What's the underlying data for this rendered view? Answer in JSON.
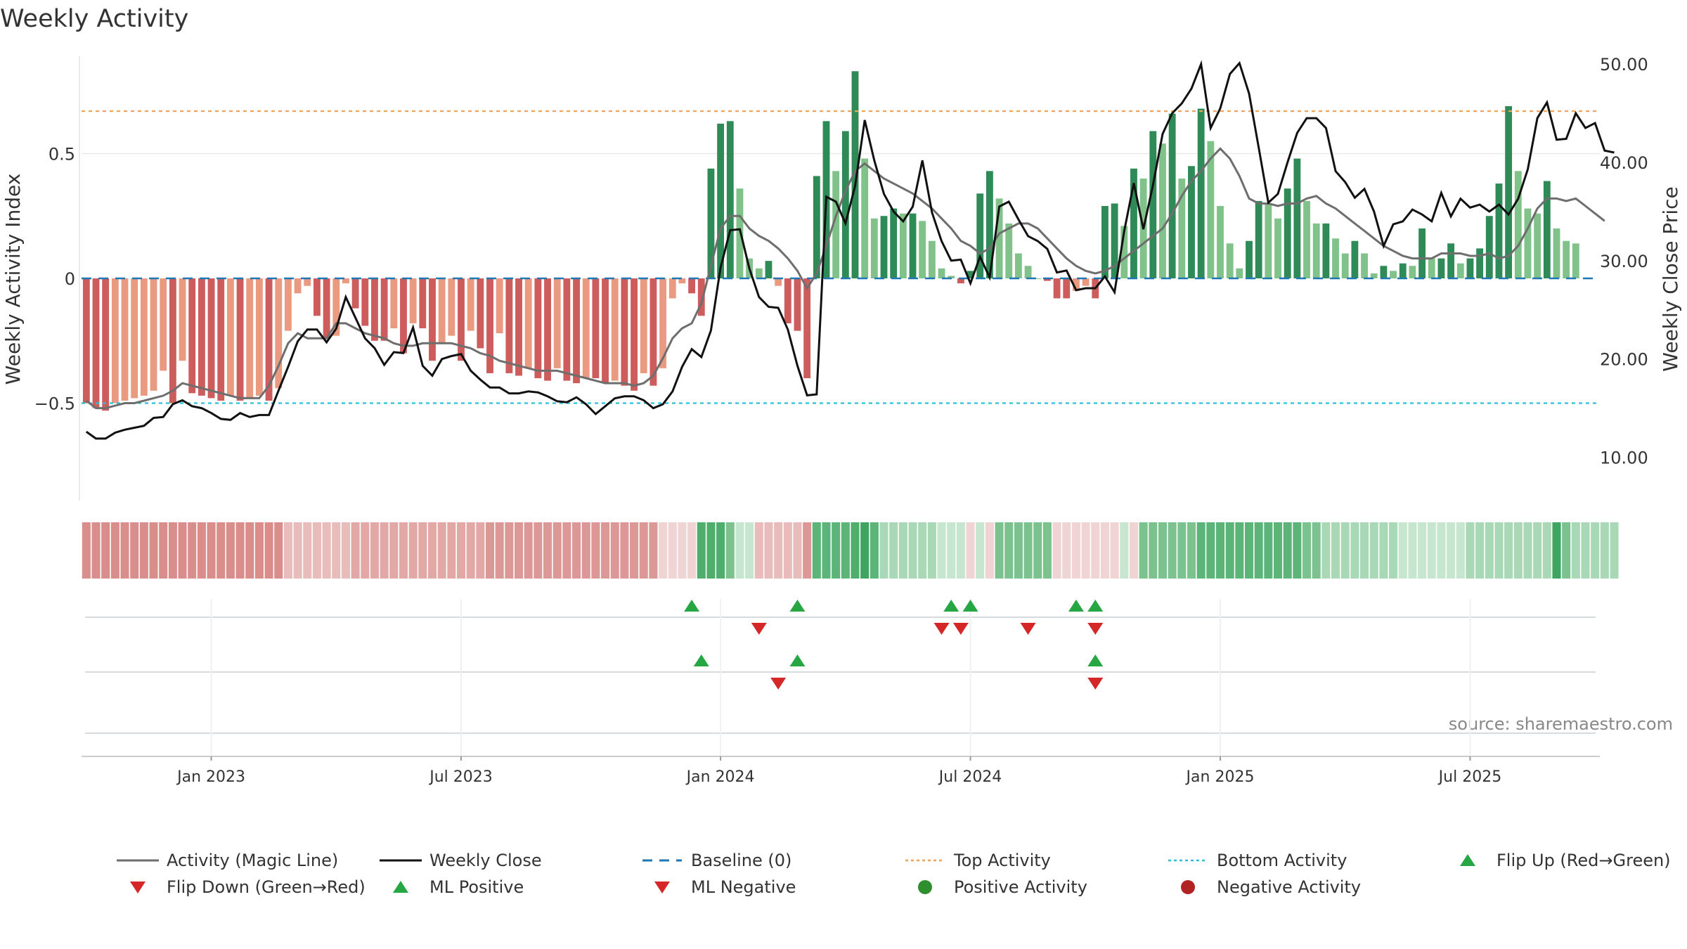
{
  "chart_data": {
    "type": "bar",
    "title": "Weekly Activity",
    "ylabel": "Weekly Activity Index",
    "y2label": "Weekly Close Price",
    "ylim": [
      -0.89,
      0.89
    ],
    "y2lim": [
      5.6,
      50.8
    ],
    "y_ticks": [
      {
        "v": -0.5,
        "label": "−0.5"
      },
      {
        "v": 0,
        "label": "0"
      },
      {
        "v": 0.5,
        "label": "0.5"
      }
    ],
    "y2_ticks": [
      {
        "v": 10,
        "label": "10.00"
      },
      {
        "v": 20,
        "label": "20.00"
      },
      {
        "v": 30,
        "label": "30.00"
      },
      {
        "v": 40,
        "label": "40.00"
      },
      {
        "v": 50,
        "label": "50.00"
      }
    ],
    "x_ticks": [
      {
        "week": 13,
        "label": "Jan 2023"
      },
      {
        "week": 39,
        "label": "Jul 2023"
      },
      {
        "week": 66,
        "label": "Jan 2024"
      },
      {
        "week": 92,
        "label": "Jul 2024"
      },
      {
        "week": 118,
        "label": "Jan 2025"
      },
      {
        "week": 144,
        "label": "Jul 2025"
      }
    ],
    "weeks": 158,
    "top_activity": 0.67,
    "bottom_activity": -0.5,
    "baseline": 0,
    "source": "source: sharemaestro.com",
    "activity": [
      -0.5,
      -0.52,
      -0.53,
      -0.5,
      -0.49,
      -0.48,
      -0.47,
      -0.45,
      -0.37,
      -0.5,
      -0.33,
      -0.46,
      -0.47,
      -0.48,
      -0.49,
      -0.47,
      -0.49,
      -0.48,
      -0.47,
      -0.49,
      -0.44,
      -0.21,
      -0.06,
      -0.03,
      -0.15,
      -0.24,
      -0.23,
      -0.02,
      -0.12,
      -0.19,
      -0.25,
      -0.25,
      -0.2,
      -0.3,
      -0.18,
      -0.2,
      -0.33,
      -0.26,
      -0.23,
      -0.33,
      -0.21,
      -0.28,
      -0.38,
      -0.22,
      -0.38,
      -0.39,
      -0.36,
      -0.4,
      -0.41,
      -0.36,
      -0.41,
      -0.42,
      -0.4,
      -0.4,
      -0.42,
      -0.41,
      -0.43,
      -0.45,
      -0.38,
      -0.43,
      -0.36,
      -0.08,
      -0.02,
      -0.06,
      -0.15,
      0.44,
      0.62,
      0.63,
      0.36,
      0.08,
      0.04,
      0.07,
      -0.03,
      -0.18,
      -0.21,
      -0.4,
      0.41,
      0.63,
      0.43,
      0.59,
      0.83,
      0.48,
      0.24,
      0.25,
      0.28,
      0.26,
      0.26,
      0.23,
      0.15,
      0.04,
      0.01,
      -0.02,
      0.03,
      0.34,
      0.43,
      0.32,
      0.22,
      0.1,
      0.05,
      0.0,
      -0.01,
      -0.08,
      -0.08,
      -0.05,
      -0.03,
      -0.08,
      0.29,
      0.3,
      0.21,
      0.44,
      0.4,
      0.59,
      0.54,
      0.66,
      0.4,
      0.45,
      0.68,
      0.55,
      0.29,
      0.14,
      0.04,
      0.15,
      0.31,
      0.3,
      0.24,
      0.36,
      0.48,
      0.31,
      0.22,
      0.22,
      0.16,
      0.1,
      0.15,
      0.1,
      0.02,
      0.05,
      0.03,
      0.06,
      0.05,
      0.2,
      0.08,
      0.08,
      0.14,
      0.06,
      0.08,
      0.12,
      0.25,
      0.38,
      0.69,
      0.43,
      0.28,
      0.26,
      0.39,
      0.2,
      0.15,
      0.14
    ],
    "magic_line": [
      -0.49,
      -0.52,
      -0.52,
      -0.51,
      -0.5,
      -0.5,
      -0.49,
      -0.48,
      -0.47,
      -0.45,
      -0.42,
      -0.43,
      -0.44,
      -0.45,
      -0.46,
      -0.47,
      -0.48,
      -0.48,
      -0.48,
      -0.43,
      -0.35,
      -0.26,
      -0.22,
      -0.24,
      -0.24,
      -0.24,
      -0.18,
      -0.18,
      -0.2,
      -0.22,
      -0.23,
      -0.24,
      -0.26,
      -0.27,
      -0.27,
      -0.26,
      -0.26,
      -0.26,
      -0.26,
      -0.27,
      -0.28,
      -0.3,
      -0.31,
      -0.33,
      -0.34,
      -0.35,
      -0.36,
      -0.37,
      -0.37,
      -0.37,
      -0.38,
      -0.39,
      -0.4,
      -0.41,
      -0.42,
      -0.42,
      -0.42,
      -0.43,
      -0.42,
      -0.39,
      -0.32,
      -0.24,
      -0.2,
      -0.18,
      -0.1,
      0.05,
      0.2,
      0.25,
      0.25,
      0.2,
      0.17,
      0.15,
      0.12,
      0.08,
      0.03,
      -0.04,
      0.02,
      0.13,
      0.25,
      0.35,
      0.43,
      0.46,
      0.43,
      0.4,
      0.38,
      0.36,
      0.34,
      0.31,
      0.28,
      0.24,
      0.2,
      0.15,
      0.13,
      0.1,
      0.12,
      0.18,
      0.2,
      0.22,
      0.22,
      0.2,
      0.16,
      0.12,
      0.08,
      0.05,
      0.03,
      0.02,
      0.03,
      0.05,
      0.08,
      0.11,
      0.14,
      0.17,
      0.2,
      0.26,
      0.33,
      0.39,
      0.43,
      0.48,
      0.52,
      0.48,
      0.41,
      0.32,
      0.3,
      0.3,
      0.29,
      0.3,
      0.3,
      0.32,
      0.33,
      0.3,
      0.28,
      0.25,
      0.22,
      0.19,
      0.16,
      0.13,
      0.11,
      0.09,
      0.08,
      0.08,
      0.08,
      0.1,
      0.1,
      0.1,
      0.09,
      0.09,
      0.1,
      0.08,
      0.09,
      0.13,
      0.2,
      0.28,
      0.32,
      0.32,
      0.31,
      0.32,
      0.29,
      0.26,
      0.23
    ],
    "weekly_close": [
      12.6,
      11.9,
      11.9,
      12.5,
      12.8,
      13.0,
      13.2,
      14.0,
      14.1,
      15.4,
      15.8,
      15.2,
      15.0,
      14.5,
      13.9,
      13.8,
      14.5,
      14.1,
      14.3,
      14.3,
      16.8,
      19.2,
      21.8,
      23.0,
      23.0,
      21.7,
      23.1,
      26.3,
      24.2,
      22.1,
      21.1,
      19.4,
      20.7,
      20.6,
      23.2,
      19.3,
      18.3,
      20.0,
      20.3,
      20.5,
      18.8,
      17.9,
      17.1,
      17.1,
      16.5,
      16.5,
      16.7,
      16.6,
      16.2,
      15.7,
      15.6,
      16.1,
      15.4,
      14.4,
      15.2,
      16.0,
      16.2,
      16.2,
      15.8,
      15.0,
      15.4,
      16.7,
      19.2,
      21.0,
      20.2,
      22.9,
      29.3,
      33.1,
      33.2,
      29.2,
      26.3,
      25.3,
      25.2,
      23.0,
      19.3,
      16.3,
      16.4,
      36.5,
      36.0,
      33.8,
      37.6,
      44.3,
      40.2,
      36.8,
      35.0,
      34.0,
      35.5,
      40.2,
      34.9,
      32.0,
      30.0,
      30.1,
      27.7,
      30.4,
      28.3,
      35.5,
      36.0,
      34.2,
      32.5,
      32.0,
      31.2,
      28.8,
      29.0,
      27.0,
      27.2,
      27.2,
      28.4,
      26.8,
      33.0,
      37.9,
      33.2,
      37.7,
      42.9,
      45.0,
      46.0,
      47.5,
      50.0,
      43.5,
      45.5,
      49.0,
      50.1,
      47.0,
      41.5,
      35.9,
      36.8,
      40.0,
      43.0,
      44.5,
      44.5,
      43.5,
      39.1,
      38.0,
      36.4,
      37.3,
      35.0,
      31.5,
      33.7,
      34.0,
      35.2,
      34.7,
      34.0,
      36.9,
      34.5,
      36.3,
      35.4,
      35.7,
      35.0,
      35.7,
      34.7,
      36.3,
      39.3,
      44.5,
      46.1,
      42.3,
      42.4,
      45.0,
      43.5,
      44.0,
      41.2,
      41.0
    ],
    "strip_colors": [
      "#d98e8c",
      "#d98e8c",
      "#d98e8c",
      "#d98e8c",
      "#d98e8c",
      "#d98e8c",
      "#d98e8c",
      "#d98e8c",
      "#d98e8c",
      "#d98e8c",
      "#d98e8c",
      "#d98e8c",
      "#d98e8c",
      "#d98e8c",
      "#d98e8c",
      "#d98e8c",
      "#d98e8c",
      "#d98e8c",
      "#d98e8c",
      "#d98e8c",
      "#d98e8c",
      "#e8bcba",
      "#e8bcba",
      "#e8bcba",
      "#e8bcba",
      "#e8bcba",
      "#e8bcba",
      "#e8bcba",
      "#e1a8a6",
      "#e1a8a6",
      "#e1a8a6",
      "#e1a8a6",
      "#e1a8a6",
      "#e1a8a6",
      "#e1a8a6",
      "#e1a8a6",
      "#e1a8a6",
      "#e1a8a6",
      "#e1a8a6",
      "#e1a8a6",
      "#e1a8a6",
      "#e1a8a6",
      "#dc9896",
      "#dc9896",
      "#dc9896",
      "#dc9896",
      "#dc9896",
      "#dc9896",
      "#dc9896",
      "#dc9896",
      "#dc9896",
      "#dc9896",
      "#dc9896",
      "#dc9896",
      "#dc9896",
      "#dc9896",
      "#dc9896",
      "#dc9896",
      "#dc9896",
      "#dc9896",
      "#f0d4d3",
      "#f0d4d3",
      "#f0d4d3",
      "#f0d4d3",
      "#4fae6c",
      "#4fae6c",
      "#4fae6c",
      "#7cc28e",
      "#c6e6cf",
      "#c6e6cf",
      "#e8bcba",
      "#e8bcba",
      "#e8bcba",
      "#e8bcba",
      "#e8bcba",
      "#dc9896",
      "#5cb479",
      "#5cb479",
      "#5cb479",
      "#5cb479",
      "#4fae6c",
      "#3ea45f",
      "#5cb479",
      "#a9d8b6",
      "#a9d8b6",
      "#a9d8b6",
      "#a9d8b6",
      "#a9d8b6",
      "#a9d8b6",
      "#c6e6cf",
      "#c6e6cf",
      "#c6e6cf",
      "#f0d4d3",
      "#c6e6cf",
      "#f0d4d3",
      "#7cc28e",
      "#7cc28e",
      "#7cc28e",
      "#7cc28e",
      "#7cc28e",
      "#7cc28e",
      "#f0d4d3",
      "#f0d4d3",
      "#f0d4d3",
      "#f0d4d3",
      "#f0d4d3",
      "#f0d4d3",
      "#f0d4d3",
      "#c6e6cf",
      "#f0d4d3",
      "#7cc28e",
      "#7cc28e",
      "#7cc28e",
      "#7cc28e",
      "#7cc28e",
      "#7cc28e",
      "#5cb479",
      "#5cb479",
      "#5cb479",
      "#5cb479",
      "#5cb479",
      "#5cb479",
      "#5cb479",
      "#5cb479",
      "#5cb479",
      "#5cb479",
      "#5cb479",
      "#7cc28e",
      "#7cc28e",
      "#a9d8b6",
      "#a9d8b6",
      "#a9d8b6",
      "#a9d8b6",
      "#a9d8b6",
      "#a9d8b6",
      "#a9d8b6",
      "#a9d8b6",
      "#c6e6cf",
      "#c6e6cf",
      "#c6e6cf",
      "#c6e6cf",
      "#c6e6cf",
      "#c6e6cf",
      "#c6e6cf",
      "#a9d8b6",
      "#a9d8b6",
      "#a9d8b6",
      "#a9d8b6",
      "#a9d8b6",
      "#a9d8b6",
      "#a9d8b6",
      "#a9d8b6",
      "#a9d8b6",
      "#3ea45f",
      "#7cc28e",
      "#a9d8b6",
      "#a9d8b6",
      "#a9d8b6",
      "#a9d8b6",
      "#a9d8b6"
    ],
    "flip_up_weeks": [
      63,
      74,
      90,
      92,
      103,
      105
    ],
    "flip_down_weeks": [
      70,
      89,
      91,
      98,
      105
    ],
    "ml_positive_weeks": [
      64,
      74,
      105
    ],
    "ml_negative_weeks": [
      72,
      105
    ],
    "colors": {
      "pos_dark": "#2e8b57",
      "pos_light": "#80c28a",
      "neg_dark": "#cd5c5c",
      "neg_light": "#e99a80",
      "magic_line": "#6e6e6e",
      "close": "#111111",
      "baseline": "#1f77b4",
      "top": "#f0a35a",
      "bottom": "#29c0d8",
      "up": "#27a644",
      "down": "#d62728",
      "pos_dot": "#2f8f2f",
      "neg_dot": "#b22222"
    },
    "legend": [
      {
        "label": "Activity (Magic Line)",
        "kind": "line",
        "color": "#6e6e6e"
      },
      {
        "label": "Weekly Close",
        "kind": "line",
        "color": "#111111"
      },
      {
        "label": "Baseline (0)",
        "kind": "dash",
        "color": "#1f77b4"
      },
      {
        "label": "Top Activity",
        "kind": "dot",
        "color": "#f0a35a"
      },
      {
        "label": "Bottom Activity",
        "kind": "dot",
        "color": "#29c0d8"
      },
      {
        "label": "Flip Up (Red→Green)",
        "kind": "tri-up",
        "color": "#27a644"
      },
      {
        "label": "Flip Down (Green→Red)",
        "kind": "tri-down",
        "color": "#d62728"
      },
      {
        "label": "ML Positive",
        "kind": "tri-up",
        "color": "#27a644"
      },
      {
        "label": "ML Negative",
        "kind": "tri-down",
        "color": "#d62728"
      },
      {
        "label": "Positive Activity",
        "kind": "circle",
        "color": "#2f8f2f"
      },
      {
        "label": "Negative Activity",
        "kind": "circle",
        "color": "#b22222"
      }
    ]
  }
}
